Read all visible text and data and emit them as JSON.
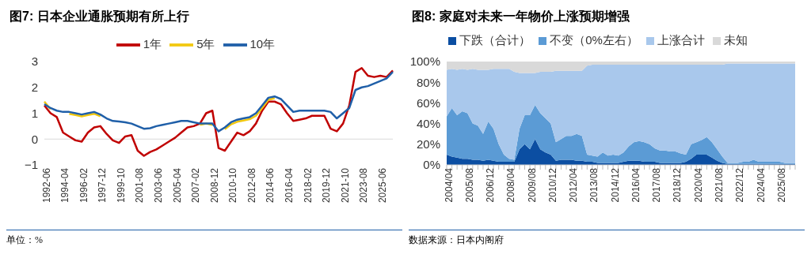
{
  "chart_data": [
    {
      "type": "line",
      "title": "图7: 日本企业通胀预期有所上行",
      "categories": [
        "1992-06",
        null,
        null,
        "1994-04",
        null,
        null,
        "1996-02",
        null,
        null,
        "1997-12",
        null,
        null,
        "1999-10",
        null,
        null,
        "2001-08",
        null,
        null,
        "2003-06",
        null,
        null,
        "2005-04",
        null,
        null,
        "2007-02",
        null,
        null,
        "2008-12",
        null,
        null,
        "2010-10",
        null,
        null,
        "2012-08",
        null,
        null,
        "2014-06",
        null,
        null,
        "2016-04",
        null,
        null,
        "2018-02",
        null,
        null,
        "2019-12",
        null,
        null,
        "2021-10",
        null,
        null,
        "2023-08",
        null,
        null,
        "2025-06",
        null,
        null
      ],
      "series": [
        {
          "name": "1年",
          "color": "#c00000",
          "values": [
            1.3,
            1.0,
            0.85,
            0.25,
            0.1,
            -0.05,
            -0.1,
            0.25,
            0.45,
            0.5,
            0.2,
            -0.05,
            -0.15,
            0.1,
            0.15,
            -0.45,
            -0.65,
            -0.5,
            -0.4,
            -0.25,
            -0.1,
            0.05,
            0.25,
            0.45,
            0.5,
            0.6,
            1.0,
            1.1,
            -0.35,
            -0.45,
            -0.1,
            0.25,
            0.15,
            0.3,
            0.6,
            1.1,
            1.45,
            1.45,
            1.35,
            1.0,
            0.7,
            0.75,
            0.8,
            0.9,
            0.9,
            0.9,
            0.4,
            0.3,
            0.6,
            1.3,
            2.6,
            2.75,
            2.45,
            2.4,
            2.45,
            2.4,
            2.65
          ]
        },
        {
          "name": "5年",
          "color": "#f2c80f",
          "values": [
            1.45,
            1.15,
            null,
            null,
            0.98,
            0.93,
            0.88,
            0.93,
            0.98,
            0.88,
            null,
            null,
            null,
            null,
            null,
            null,
            null,
            null,
            null,
            null,
            null,
            null,
            null,
            null,
            null,
            0.55,
            0.6,
            0.55,
            null,
            0.38,
            0.57,
            0.67,
            0.72,
            0.77,
            0.9,
            1.2,
            1.52,
            1.58,
            null,
            null,
            null,
            null,
            null,
            null,
            null,
            null,
            null,
            null,
            null,
            null,
            null,
            null,
            null,
            null,
            null,
            null,
            null
          ]
        },
        {
          "name": "10年",
          "color": "#1f5fa8",
          "values": [
            1.35,
            1.2,
            1.1,
            1.05,
            1.05,
            1.0,
            0.95,
            1.0,
            1.05,
            0.95,
            0.8,
            0.7,
            0.68,
            0.65,
            0.6,
            0.5,
            0.4,
            0.42,
            0.5,
            0.55,
            0.6,
            0.65,
            0.7,
            0.7,
            0.65,
            0.6,
            0.6,
            0.6,
            0.3,
            0.45,
            0.65,
            0.75,
            0.8,
            0.85,
            1.0,
            1.3,
            1.6,
            1.65,
            1.55,
            1.3,
            1.05,
            1.1,
            1.1,
            1.1,
            1.1,
            1.1,
            1.05,
            0.8,
            1.0,
            1.2,
            1.9,
            2.0,
            2.05,
            2.15,
            2.25,
            2.35,
            2.6
          ]
        }
      ],
      "ylim": [
        -1,
        3
      ],
      "yticks": [
        {
          "value": -1,
          "label": "−1"
        },
        0,
        1,
        2,
        3
      ],
      "legend": "top",
      "marker": "none",
      "grid": false,
      "ref_lines": [
        {
          "axis": "y",
          "value": 0,
          "color": "#d9d9d9"
        }
      ],
      "annotations": [
        "单位：%"
      ]
    },
    {
      "type": "area",
      "stacked": true,
      "title": "图8: 家庭对未来一年物价上涨预期增强",
      "categories": [
        "2004/04",
        null,
        null,
        null,
        "2005/08",
        null,
        null,
        null,
        "2006/12",
        null,
        null,
        null,
        "2008/04",
        null,
        null,
        null,
        "2009/08",
        null,
        null,
        null,
        "2010/12",
        null,
        null,
        null,
        "2012/04",
        null,
        null,
        null,
        "2013/08",
        null,
        null,
        null,
        "2014/12",
        null,
        null,
        null,
        "2016/04",
        null,
        null,
        null,
        "2017/08",
        null,
        null,
        null,
        "2018/12",
        null,
        null,
        null,
        "2020/04",
        null,
        null,
        null,
        "2021/08",
        null,
        null,
        null,
        "2022/12",
        null,
        null,
        null,
        "2024/04",
        null,
        null,
        null,
        "2025/08",
        null,
        null,
        null
      ],
      "series": [
        {
          "name": "下跌（合计）",
          "color": "#0b4ea2",
          "values": [
            10,
            8,
            7,
            6,
            6,
            5,
            5,
            4,
            5,
            4,
            3,
            3,
            3,
            3,
            15,
            20,
            15,
            25,
            15,
            12,
            10,
            4,
            5,
            5,
            5,
            4,
            4,
            3,
            3,
            2,
            2,
            2,
            2,
            2,
            3,
            4,
            4,
            4,
            3,
            3,
            3,
            2,
            2,
            2,
            2,
            2,
            3,
            6,
            10,
            10,
            10,
            7,
            4,
            2,
            1,
            1,
            1,
            1,
            1,
            1,
            1,
            1,
            1,
            1,
            1,
            1,
            1,
            1
          ]
        },
        {
          "name": "不变（0%左右）",
          "color": "#5b9bd5",
          "values": [
            37,
            47,
            41,
            46,
            44,
            35,
            33,
            26,
            37,
            31,
            17,
            7,
            3,
            2,
            20,
            28,
            33,
            33,
            35,
            33,
            30,
            18,
            20,
            23,
            23,
            26,
            24,
            7,
            6,
            6,
            10,
            7,
            8,
            7,
            9,
            14,
            18,
            19,
            19,
            17,
            13,
            12,
            12,
            11,
            11,
            9,
            7,
            14,
            12,
            14,
            17,
            15,
            11,
            6,
            1,
            1,
            1,
            2,
            2,
            4,
            2,
            2,
            2,
            2,
            2,
            1,
            1,
            1
          ]
        },
        {
          "name": "上涨合计",
          "color": "#a9c8ec",
          "values": [
            45,
            38,
            44,
            41,
            42,
            53,
            54,
            62,
            50,
            58,
            73,
            83,
            87,
            85,
            54,
            41,
            41,
            31,
            40,
            45,
            50,
            69,
            66,
            63,
            63,
            61,
            63,
            86,
            88,
            89,
            85,
            88,
            87,
            88,
            85,
            79,
            75,
            74,
            75,
            77,
            81,
            83,
            83,
            84,
            84,
            86,
            87,
            77,
            75,
            73,
            70,
            75,
            82,
            89,
            96,
            96,
            96,
            95,
            95,
            93,
            95,
            95,
            95,
            95,
            95,
            96,
            96,
            96
          ]
        },
        {
          "name": "未知",
          "color": "#d9d9d9",
          "values": [
            8,
            7,
            8,
            7,
            8,
            7,
            8,
            8,
            8,
            7,
            7,
            7,
            7,
            10,
            11,
            11,
            11,
            11,
            10,
            10,
            10,
            9,
            9,
            9,
            9,
            9,
            9,
            4,
            3,
            3,
            3,
            3,
            3,
            3,
            3,
            3,
            3,
            3,
            3,
            3,
            3,
            3,
            3,
            3,
            3,
            3,
            3,
            3,
            3,
            3,
            3,
            3,
            3,
            3,
            2,
            2,
            2,
            2,
            2,
            2,
            2,
            2,
            2,
            2,
            2,
            2,
            2,
            2
          ]
        }
      ],
      "ylim": [
        0,
        100
      ],
      "yticks": [
        {
          "value": 0,
          "label": "0%"
        },
        {
          "value": 20,
          "label": "20%"
        },
        {
          "value": 40,
          "label": "40%"
        },
        {
          "value": 60,
          "label": "60%"
        },
        {
          "value": 80,
          "label": "80%"
        },
        {
          "value": 100,
          "label": "100%"
        }
      ],
      "legend": "top",
      "grid": false,
      "annotations": [
        "数据来源：日本内阁府"
      ]
    }
  ]
}
